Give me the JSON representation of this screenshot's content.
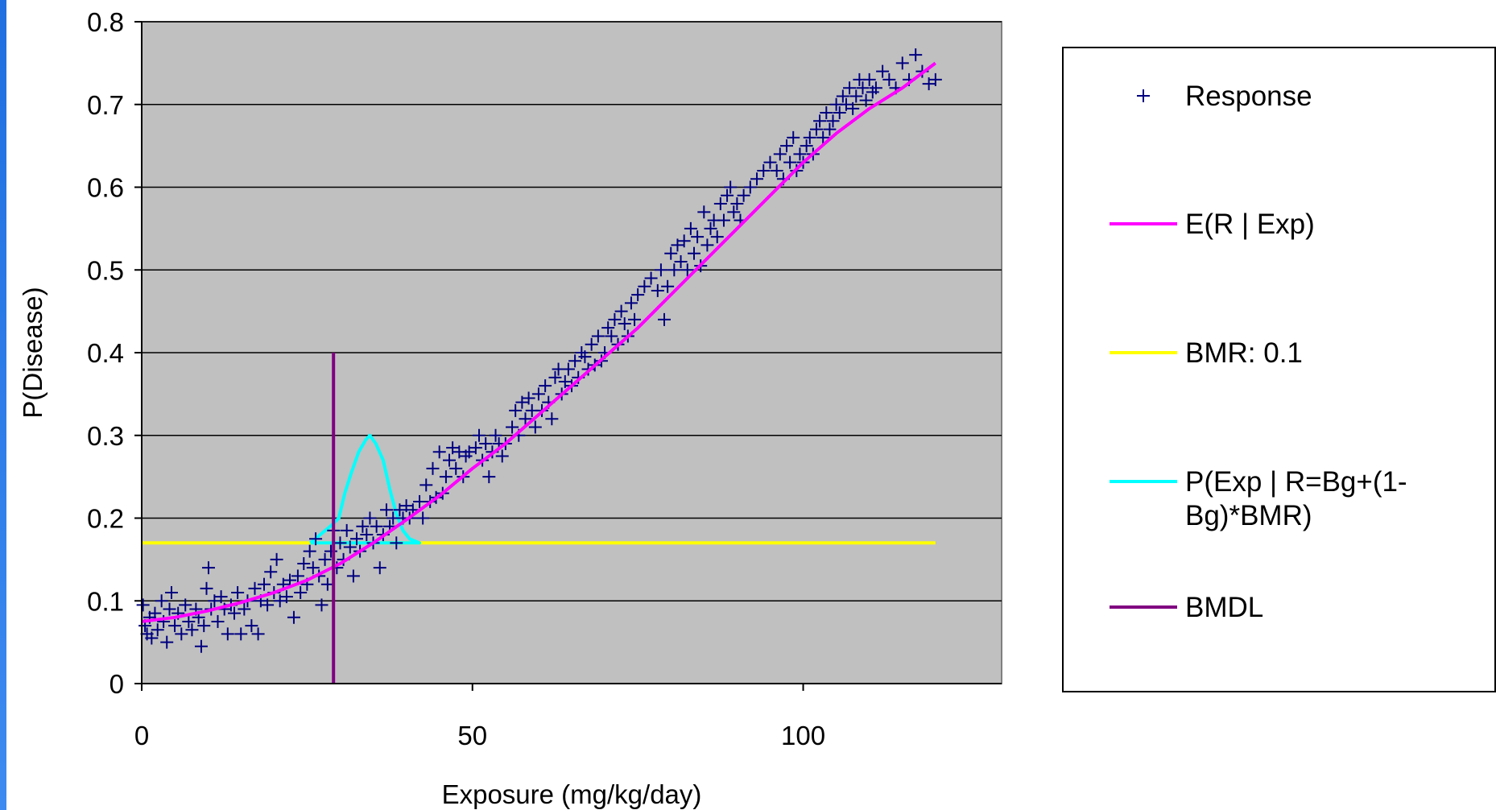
{
  "chart_data": {
    "type": "scatter",
    "title": "",
    "xlabel": "Exposure (mg/kg/day)",
    "ylabel": "P(Disease)",
    "xlim": [
      0,
      130
    ],
    "ylim": [
      0,
      0.8
    ],
    "x_ticks": [
      "0",
      "50",
      "100"
    ],
    "x_tick_values": [
      0,
      50,
      100
    ],
    "y_ticks": [
      "0",
      "0.1",
      "0.2",
      "0.3",
      "0.4",
      "0.5",
      "0.6",
      "0.7",
      "0.8"
    ],
    "y_tick_values": [
      0,
      0.1,
      0.2,
      0.3,
      0.4,
      0.5,
      0.6,
      0.7,
      0.8
    ],
    "grid": "horizontal",
    "plot_background": "#c0c0c0",
    "legend_position": "right",
    "series": [
      {
        "name": "Response",
        "type": "scatter",
        "marker": "plus",
        "color": "#000080",
        "points": [
          [
            0.2,
            0.095
          ],
          [
            0.5,
            0.07
          ],
          [
            0.8,
            0.06
          ],
          [
            1.2,
            0.08
          ],
          [
            1.5,
            0.055
          ],
          [
            2.0,
            0.085
          ],
          [
            2.4,
            0.065
          ],
          [
            3.0,
            0.1
          ],
          [
            3.3,
            0.075
          ],
          [
            3.8,
            0.05
          ],
          [
            4.2,
            0.09
          ],
          [
            4.5,
            0.11
          ],
          [
            5.0,
            0.07
          ],
          [
            5.5,
            0.085
          ],
          [
            6.0,
            0.06
          ],
          [
            6.6,
            0.095
          ],
          [
            7.1,
            0.075
          ],
          [
            7.6,
            0.065
          ],
          [
            8.2,
            0.09
          ],
          [
            8.6,
            0.08
          ],
          [
            9.0,
            0.045
          ],
          [
            9.4,
            0.07
          ],
          [
            9.8,
            0.115
          ],
          [
            10.1,
            0.14
          ],
          [
            10.5,
            0.09
          ],
          [
            11.0,
            0.1
          ],
          [
            11.5,
            0.075
          ],
          [
            12.0,
            0.105
          ],
          [
            12.5,
            0.09
          ],
          [
            13.0,
            0.06
          ],
          [
            13.5,
            0.095
          ],
          [
            14.0,
            0.085
          ],
          [
            14.5,
            0.11
          ],
          [
            15.0,
            0.06
          ],
          [
            15.5,
            0.09
          ],
          [
            16.0,
            0.1
          ],
          [
            16.6,
            0.07
          ],
          [
            17.1,
            0.115
          ],
          [
            17.6,
            0.06
          ],
          [
            18.0,
            0.1
          ],
          [
            18.5,
            0.12
          ],
          [
            19.0,
            0.095
          ],
          [
            19.5,
            0.135
          ],
          [
            20.0,
            0.11
          ],
          [
            20.4,
            0.15
          ],
          [
            20.9,
            0.1
          ],
          [
            21.4,
            0.12
          ],
          [
            21.9,
            0.105
          ],
          [
            22.4,
            0.125
          ],
          [
            23.0,
            0.08
          ],
          [
            23.6,
            0.13
          ],
          [
            24.0,
            0.11
          ],
          [
            24.5,
            0.145
          ],
          [
            25.0,
            0.12
          ],
          [
            25.4,
            0.16
          ],
          [
            25.9,
            0.14
          ],
          [
            26.3,
            0.175
          ],
          [
            26.8,
            0.13
          ],
          [
            27.2,
            0.095
          ],
          [
            27.7,
            0.15
          ],
          [
            28.1,
            0.12
          ],
          [
            28.6,
            0.16
          ],
          [
            29.0,
            0.185
          ],
          [
            29.5,
            0.14
          ],
          [
            30.0,
            0.17
          ],
          [
            30.5,
            0.15
          ],
          [
            31.0,
            0.185
          ],
          [
            31.5,
            0.165
          ],
          [
            32.0,
            0.13
          ],
          [
            32.5,
            0.175
          ],
          [
            33.0,
            0.16
          ],
          [
            33.4,
            0.19
          ],
          [
            34.0,
            0.18
          ],
          [
            34.5,
            0.2
          ],
          [
            35.0,
            0.17
          ],
          [
            35.5,
            0.19
          ],
          [
            36.0,
            0.14
          ],
          [
            36.5,
            0.18
          ],
          [
            37.0,
            0.21
          ],
          [
            37.5,
            0.19
          ],
          [
            38.0,
            0.2
          ],
          [
            38.5,
            0.17
          ],
          [
            39.0,
            0.21
          ],
          [
            39.5,
            0.2
          ],
          [
            40.0,
            0.215
          ],
          [
            40.5,
            0.2
          ],
          [
            41.0,
            0.21
          ],
          [
            42.0,
            0.22
          ],
          [
            42.5,
            0.2
          ],
          [
            43.0,
            0.24
          ],
          [
            43.6,
            0.22
          ],
          [
            44.0,
            0.26
          ],
          [
            44.5,
            0.225
          ],
          [
            45.0,
            0.28
          ],
          [
            45.5,
            0.23
          ],
          [
            46.0,
            0.25
          ],
          [
            46.5,
            0.27
          ],
          [
            47.0,
            0.285
          ],
          [
            47.5,
            0.26
          ],
          [
            48.0,
            0.28
          ],
          [
            48.6,
            0.25
          ],
          [
            49.0,
            0.275
          ],
          [
            49.5,
            0.28
          ],
          [
            50.5,
            0.285
          ],
          [
            51.0,
            0.3
          ],
          [
            51.5,
            0.27
          ],
          [
            52.0,
            0.29
          ],
          [
            52.5,
            0.25
          ],
          [
            53.0,
            0.28
          ],
          [
            53.5,
            0.3
          ],
          [
            54.0,
            0.29
          ],
          [
            54.5,
            0.275
          ],
          [
            55.0,
            0.29
          ],
          [
            56.0,
            0.31
          ],
          [
            56.5,
            0.33
          ],
          [
            57.0,
            0.3
          ],
          [
            57.5,
            0.34
          ],
          [
            58.0,
            0.32
          ],
          [
            58.5,
            0.345
          ],
          [
            59.0,
            0.33
          ],
          [
            59.5,
            0.31
          ],
          [
            60.0,
            0.35
          ],
          [
            60.5,
            0.33
          ],
          [
            61.0,
            0.36
          ],
          [
            61.5,
            0.34
          ],
          [
            62.0,
            0.32
          ],
          [
            62.5,
            0.37
          ],
          [
            63.0,
            0.38
          ],
          [
            63.5,
            0.35
          ],
          [
            64.0,
            0.365
          ],
          [
            64.5,
            0.38
          ],
          [
            65.0,
            0.36
          ],
          [
            65.5,
            0.39
          ],
          [
            66.0,
            0.37
          ],
          [
            66.5,
            0.4
          ],
          [
            67.0,
            0.395
          ],
          [
            67.5,
            0.38
          ],
          [
            68.0,
            0.41
          ],
          [
            68.5,
            0.385
          ],
          [
            69.0,
            0.42
          ],
          [
            69.5,
            0.39
          ],
          [
            70.0,
            0.4
          ],
          [
            70.5,
            0.43
          ],
          [
            71.0,
            0.42
          ],
          [
            71.5,
            0.44
          ],
          [
            72.0,
            0.41
          ],
          [
            72.5,
            0.45
          ],
          [
            73.0,
            0.435
          ],
          [
            73.5,
            0.42
          ],
          [
            74.0,
            0.46
          ],
          [
            74.5,
            0.44
          ],
          [
            75.0,
            0.47
          ],
          [
            76.0,
            0.48
          ],
          [
            77.0,
            0.49
          ],
          [
            78.0,
            0.475
          ],
          [
            78.5,
            0.5
          ],
          [
            79.0,
            0.44
          ],
          [
            79.5,
            0.48
          ],
          [
            80.0,
            0.52
          ],
          [
            80.5,
            0.5
          ],
          [
            81.0,
            0.53
          ],
          [
            81.5,
            0.51
          ],
          [
            82.0,
            0.535
          ],
          [
            82.5,
            0.5
          ],
          [
            83.0,
            0.55
          ],
          [
            83.5,
            0.52
          ],
          [
            84.0,
            0.54
          ],
          [
            84.5,
            0.505
          ],
          [
            85.0,
            0.57
          ],
          [
            85.5,
            0.53
          ],
          [
            86.0,
            0.55
          ],
          [
            86.5,
            0.56
          ],
          [
            87.0,
            0.54
          ],
          [
            87.5,
            0.58
          ],
          [
            88.0,
            0.56
          ],
          [
            88.5,
            0.59
          ],
          [
            89.0,
            0.6
          ],
          [
            89.5,
            0.57
          ],
          [
            90.0,
            0.58
          ],
          [
            90.5,
            0.56
          ],
          [
            91.0,
            0.59
          ],
          [
            92.0,
            0.6
          ],
          [
            93.0,
            0.61
          ],
          [
            94.0,
            0.62
          ],
          [
            95.0,
            0.63
          ],
          [
            96.0,
            0.62
          ],
          [
            96.5,
            0.64
          ],
          [
            97.0,
            0.61
          ],
          [
            97.5,
            0.65
          ],
          [
            98.0,
            0.63
          ],
          [
            98.5,
            0.66
          ],
          [
            99.0,
            0.62
          ],
          [
            99.5,
            0.64
          ],
          [
            100.0,
            0.63
          ],
          [
            100.5,
            0.65
          ],
          [
            101.0,
            0.66
          ],
          [
            101.5,
            0.64
          ],
          [
            102.0,
            0.67
          ],
          [
            102.5,
            0.68
          ],
          [
            103.0,
            0.66
          ],
          [
            103.5,
            0.69
          ],
          [
            104.0,
            0.67
          ],
          [
            104.5,
            0.68
          ],
          [
            105.0,
            0.7
          ],
          [
            105.5,
            0.69
          ],
          [
            106.0,
            0.71
          ],
          [
            106.5,
            0.7
          ],
          [
            107.0,
            0.72
          ],
          [
            107.5,
            0.695
          ],
          [
            108.0,
            0.71
          ],
          [
            108.5,
            0.73
          ],
          [
            109.0,
            0.72
          ],
          [
            109.5,
            0.705
          ],
          [
            110.0,
            0.73
          ],
          [
            110.5,
            0.715
          ],
          [
            111.0,
            0.72
          ],
          [
            112.0,
            0.74
          ],
          [
            113.0,
            0.73
          ],
          [
            114.0,
            0.72
          ],
          [
            115.0,
            0.75
          ],
          [
            116.0,
            0.73
          ],
          [
            117.0,
            0.76
          ],
          [
            118.0,
            0.74
          ],
          [
            119.0,
            0.725
          ],
          [
            120.0,
            0.73
          ]
        ]
      },
      {
        "name": "E(R | Exp)",
        "type": "line",
        "color": "#ff00ff",
        "x": [
          0,
          5,
          10,
          15,
          20,
          25,
          30,
          35,
          40,
          45,
          50,
          55,
          60,
          65,
          70,
          75,
          80,
          85,
          90,
          95,
          100,
          105,
          110,
          115,
          120
        ],
        "y": [
          0.075,
          0.08,
          0.088,
          0.098,
          0.11,
          0.125,
          0.145,
          0.17,
          0.198,
          0.227,
          0.26,
          0.29,
          0.325,
          0.36,
          0.395,
          0.43,
          0.47,
          0.51,
          0.55,
          0.59,
          0.63,
          0.665,
          0.695,
          0.72,
          0.75
        ]
      },
      {
        "name": "BMR: 0.1",
        "type": "line",
        "color": "#ffff00",
        "x": [
          0,
          120
        ],
        "y": [
          0.17,
          0.17
        ]
      },
      {
        "name": "P(Exp | R=Bg+(1-Bg)*BMR)",
        "type": "line",
        "color": "#00ffff",
        "x": [
          25.5,
          27.0,
          28.5,
          29.8,
          30.7,
          31.7,
          32.8,
          33.9,
          34.5,
          35.4,
          36.5,
          37.5,
          38.5,
          39.5,
          40.5,
          42.0,
          40.0,
          36.0,
          32.0,
          29.0,
          27.0,
          25.5
        ],
        "y": [
          0.17,
          0.18,
          0.19,
          0.2,
          0.23,
          0.255,
          0.28,
          0.295,
          0.3,
          0.29,
          0.27,
          0.235,
          0.205,
          0.185,
          0.175,
          0.17,
          0.17,
          0.17,
          0.17,
          0.17,
          0.17,
          0.17
        ]
      },
      {
        "name": "BMDL",
        "type": "line",
        "color": "#800080",
        "x": [
          29,
          29
        ],
        "y": [
          0,
          0.4
        ]
      }
    ]
  }
}
